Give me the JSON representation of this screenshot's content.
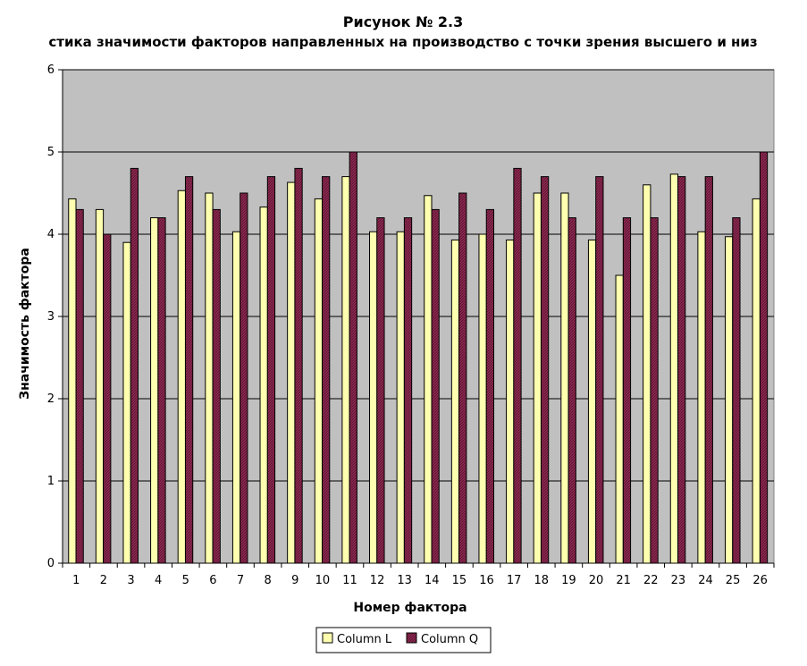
{
  "chart_data": {
    "type": "bar",
    "title": "Рисунок № 2.3",
    "subtitle": "стика значимости факторов направленных на производство с точки зрения высшего и низ",
    "xlabel": "Номер фактора",
    "ylabel": "Значимость фактора",
    "ylim": [
      0,
      6
    ],
    "yticks": [
      "0",
      "1",
      "2",
      "3",
      "4",
      "5",
      "6"
    ],
    "grid": true,
    "legend_position": "bottom",
    "categories": [
      "1",
      "2",
      "3",
      "4",
      "5",
      "6",
      "7",
      "8",
      "9",
      "10",
      "11",
      "12",
      "13",
      "14",
      "15",
      "16",
      "17",
      "18",
      "19",
      "20",
      "21",
      "22",
      "23",
      "24",
      "25",
      "26"
    ],
    "series": [
      {
        "name": "Column L",
        "color": "#ffffb0",
        "values": [
          4.43,
          4.3,
          3.9,
          4.2,
          4.53,
          4.5,
          4.03,
          4.33,
          4.63,
          4.43,
          4.7,
          4.03,
          4.03,
          4.47,
          3.93,
          4.0,
          3.93,
          4.5,
          4.5,
          3.93,
          3.5,
          4.6,
          4.73,
          4.03,
          3.97,
          4.43
        ]
      },
      {
        "name": "Column Q",
        "color": "#8b2a50",
        "values": [
          4.3,
          4.0,
          4.8,
          4.2,
          4.7,
          4.3,
          4.5,
          4.7,
          4.8,
          4.7,
          5.0,
          4.2,
          4.2,
          4.3,
          4.5,
          4.3,
          4.8,
          4.7,
          4.2,
          4.7,
          4.2,
          4.2,
          4.7,
          4.7,
          4.2,
          5.0
        ]
      }
    ],
    "plot_background": "#c0c0c0"
  }
}
